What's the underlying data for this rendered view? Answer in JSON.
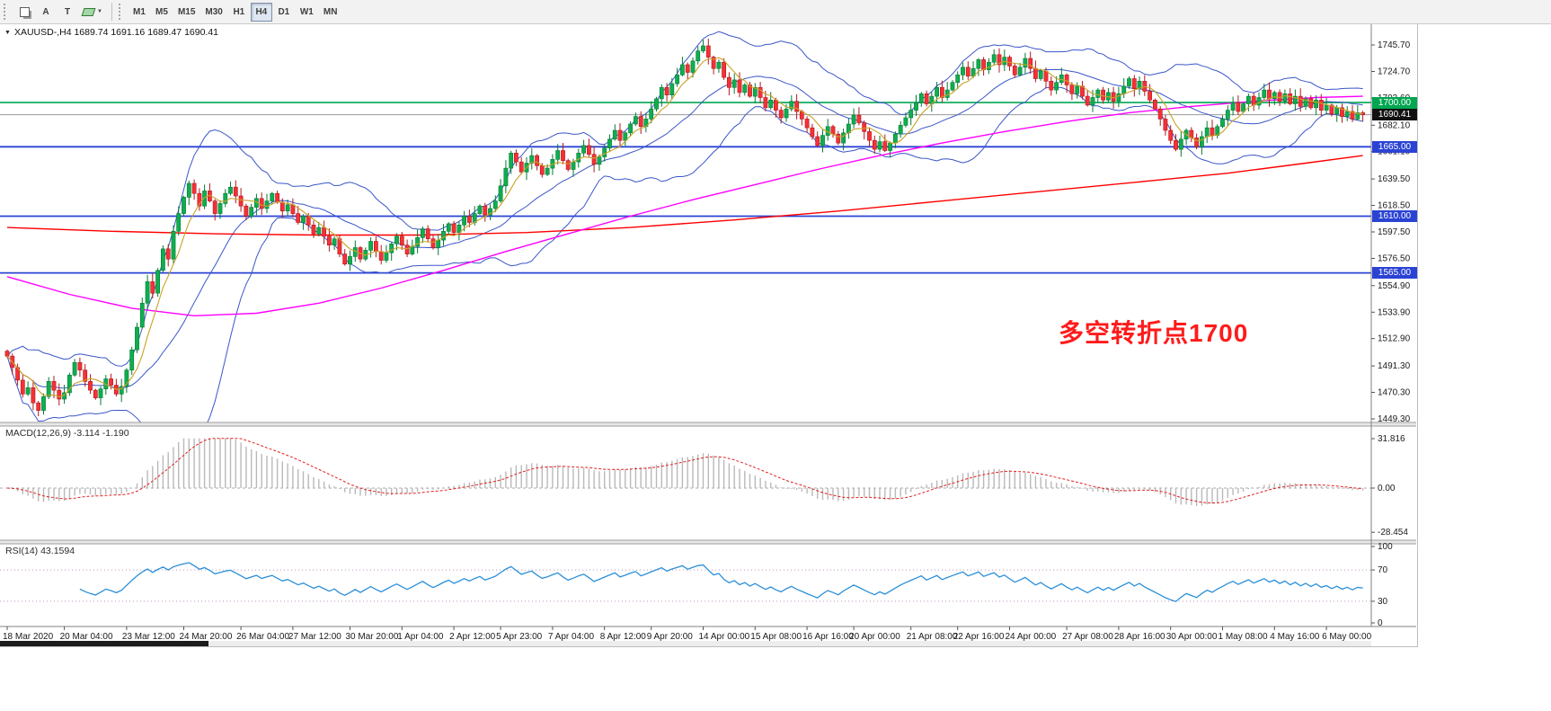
{
  "icons": {
    "symbol_dropdown": "▼",
    "caret_down": "▼"
  },
  "toolbar": {
    "text_tool_label": "A",
    "shapes_tool_label": "T",
    "timeframes": [
      "M1",
      "M5",
      "M15",
      "M30",
      "H1",
      "H4",
      "D1",
      "W1",
      "MN"
    ],
    "active_timeframe": "H4"
  },
  "chart": {
    "title": "XAUUSD-,H4  1689.74 1691.16 1689.47 1690.41",
    "annotation": {
      "text": "多空转折点1700",
      "color": "#fe1b1b"
    },
    "price_axis": {
      "labels": [
        "1745.70",
        "1724.70",
        "1703.60",
        "1682.10",
        "1661.10",
        "1639.50",
        "1618.50",
        "1597.50",
        "1576.50",
        "1554.90",
        "1533.90",
        "1512.90",
        "1491.30",
        "1470.30",
        "1449.30"
      ]
    },
    "hlines": [
      {
        "value": 1700.0,
        "label": "1700.00",
        "color": "#00a651",
        "width": 1.6
      },
      {
        "value": 1665.0,
        "label": "1665.00",
        "color": "#2b43d4",
        "width": 1.8
      },
      {
        "value": 1610.0,
        "label": "1610.00",
        "color": "#2b43d4",
        "width": 1.8
      },
      {
        "value": 1565.0,
        "label": "1565.00",
        "color": "#2b43d4",
        "width": 1.8
      }
    ],
    "current_price": {
      "value": 1690.41,
      "label": "1690.41",
      "tag_bg": "#111111",
      "line_color": "#9a9a9a"
    },
    "time_labels": [
      {
        "text": "18 Mar 2020",
        "i": 0
      },
      {
        "text": "20 Mar 04:00",
        "i": 11
      },
      {
        "text": "23 Mar 12:00",
        "i": 23
      },
      {
        "text": "24 Mar 20:00",
        "i": 34
      },
      {
        "text": "26 Mar 04:00",
        "i": 45
      },
      {
        "text": "27 Mar 12:00",
        "i": 55
      },
      {
        "text": "30 Mar 20:00",
        "i": 66
      },
      {
        "text": "1 Apr 04:00",
        "i": 76
      },
      {
        "text": "2 Apr 12:00",
        "i": 86
      },
      {
        "text": "5 Apr 23:00",
        "i": 95
      },
      {
        "text": "7 Apr 04:00",
        "i": 105
      },
      {
        "text": "8 Apr 12:00",
        "i": 115
      },
      {
        "text": "9 Apr 20:00",
        "i": 124
      },
      {
        "text": "14 Apr 00:00",
        "i": 134
      },
      {
        "text": "15 Apr 08:00",
        "i": 144
      },
      {
        "text": "16 Apr 16:00",
        "i": 154
      },
      {
        "text": "20 Apr 00:00",
        "i": 163
      },
      {
        "text": "21 Apr 08:00",
        "i": 174
      },
      {
        "text": "22 Apr 16:00",
        "i": 183
      },
      {
        "text": "24 Apr 00:00",
        "i": 193
      },
      {
        "text": "27 Apr 08:00",
        "i": 204
      },
      {
        "text": "28 Apr 16:00",
        "i": 214
      },
      {
        "text": "30 Apr 00:00",
        "i": 224
      },
      {
        "text": "1 May 08:00",
        "i": 234
      },
      {
        "text": "4 May 16:00",
        "i": 244
      },
      {
        "text": "6 May 00:00",
        "i": 254
      }
    ],
    "candles_close": [
      1499,
      1490,
      1480,
      1469,
      1474,
      1462,
      1456,
      1467,
      1479,
      1472,
      1465,
      1470,
      1484,
      1494,
      1488,
      1479,
      1472,
      1466,
      1473,
      1481,
      1476,
      1469,
      1475,
      1488,
      1504,
      1522,
      1541,
      1558,
      1549,
      1567,
      1584,
      1576,
      1598,
      1612,
      1625,
      1636,
      1628,
      1618,
      1630,
      1622,
      1612,
      1620,
      1628,
      1633,
      1626,
      1618,
      1610,
      1617,
      1624,
      1616,
      1622,
      1628,
      1621,
      1614,
      1619,
      1612,
      1605,
      1610,
      1603,
      1596,
      1601,
      1594,
      1587,
      1592,
      1580,
      1572,
      1578,
      1585,
      1576,
      1583,
      1590,
      1582,
      1575,
      1581,
      1588,
      1594,
      1587,
      1580,
      1586,
      1593,
      1600,
      1592,
      1585,
      1591,
      1598,
      1604,
      1597,
      1603,
      1610,
      1605,
      1612,
      1618,
      1611,
      1616,
      1622,
      1634,
      1648,
      1660,
      1653,
      1645,
      1652,
      1658,
      1650,
      1643,
      1648,
      1655,
      1662,
      1654,
      1647,
      1653,
      1660,
      1666,
      1659,
      1651,
      1657,
      1664,
      1671,
      1678,
      1670,
      1676,
      1683,
      1689,
      1681,
      1687,
      1695,
      1703,
      1712,
      1706,
      1715,
      1722,
      1730,
      1724,
      1733,
      1741,
      1745,
      1736,
      1727,
      1732,
      1720,
      1712,
      1718,
      1708,
      1714,
      1705,
      1712,
      1704,
      1696,
      1702,
      1694,
      1688,
      1695,
      1701,
      1693,
      1687,
      1680,
      1673,
      1666,
      1674,
      1681,
      1675,
      1668,
      1676,
      1683,
      1690,
      1684,
      1677,
      1670,
      1663,
      1669,
      1662,
      1668,
      1675,
      1682,
      1688,
      1694,
      1700,
      1707,
      1699,
      1705,
      1712,
      1704,
      1710,
      1716,
      1722,
      1728,
      1721,
      1727,
      1734,
      1726,
      1732,
      1738,
      1730,
      1736,
      1729,
      1722,
      1728,
      1735,
      1727,
      1719,
      1725,
      1717,
      1710,
      1716,
      1722,
      1714,
      1707,
      1713,
      1705,
      1698,
      1704,
      1710,
      1702,
      1708,
      1701,
      1707,
      1713,
      1719,
      1711,
      1717,
      1709,
      1702,
      1695,
      1687,
      1678,
      1670,
      1663,
      1671,
      1678,
      1672,
      1665,
      1673,
      1680,
      1674,
      1681,
      1687,
      1694,
      1700,
      1693,
      1699,
      1705,
      1698,
      1704,
      1710,
      1703,
      1708,
      1701,
      1707,
      1699,
      1705,
      1697,
      1703,
      1696,
      1702,
      1694,
      1698,
      1691,
      1696,
      1689,
      1693,
      1687,
      1692,
      1690.41
    ],
    "ma_red": [
      [
        0,
        1601
      ],
      [
        20,
        1598
      ],
      [
        40,
        1596
      ],
      [
        60,
        1595
      ],
      [
        80,
        1595
      ],
      [
        100,
        1597
      ],
      [
        120,
        1601
      ],
      [
        140,
        1607
      ],
      [
        160,
        1614
      ],
      [
        180,
        1622
      ],
      [
        200,
        1630
      ],
      [
        220,
        1638
      ],
      [
        235,
        1644
      ],
      [
        250,
        1652
      ],
      [
        261,
        1658
      ]
    ],
    "ma_magenta": [
      [
        0,
        1562
      ],
      [
        12,
        1548
      ],
      [
        24,
        1537
      ],
      [
        36,
        1531
      ],
      [
        48,
        1533
      ],
      [
        60,
        1541
      ],
      [
        72,
        1553
      ],
      [
        84,
        1567
      ],
      [
        96,
        1582
      ],
      [
        108,
        1596
      ],
      [
        120,
        1610
      ],
      [
        132,
        1623
      ],
      [
        144,
        1635
      ],
      [
        156,
        1647
      ],
      [
        168,
        1658
      ],
      [
        180,
        1668
      ],
      [
        192,
        1677
      ],
      [
        204,
        1685
      ],
      [
        216,
        1692
      ],
      [
        228,
        1697
      ],
      [
        240,
        1701
      ],
      [
        252,
        1704
      ],
      [
        261,
        1705
      ]
    ],
    "colors": {
      "up_fill": "#0fae4e",
      "up_stroke": "#067a36",
      "down_fill": "#f53136",
      "down_stroke": "#b2181d",
      "bollinger": "#3a56c8",
      "ma_fast": "#c9a227",
      "ma_red": "#ff0000",
      "ma_magenta": "#ff00ff"
    }
  },
  "macd": {
    "label": "MACD(12,26,9) -3.114 -1.190",
    "axis": [
      {
        "text": "31.816",
        "v": 31.816
      },
      {
        "text": "0.00",
        "v": 0
      },
      {
        "text": "-28.454",
        "v": -28.454
      }
    ],
    "histogram_color": "#b9b9b9",
    "signal_color": "#e02020"
  },
  "rsi": {
    "label": "RSI(14) 43.1594",
    "axis": [
      {
        "text": "100",
        "v": 100
      },
      {
        "text": "70",
        "v": 70
      },
      {
        "text": "30",
        "v": 30
      },
      {
        "text": "0",
        "v": 0
      }
    ],
    "levels": [
      70,
      30
    ],
    "line_color": "#2a8fd8",
    "level_color": "#bf93bf"
  }
}
